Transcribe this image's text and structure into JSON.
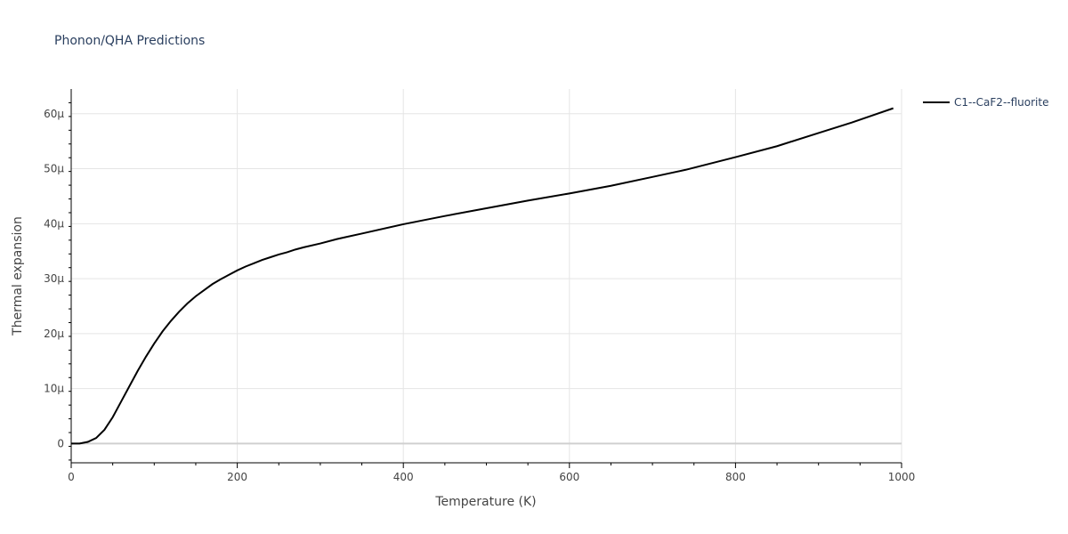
{
  "chart_data": {
    "type": "line",
    "title": "Phonon/QHA Predictions",
    "xlabel": "Temperature (K)",
    "ylabel": "Thermal expansion",
    "xlim": [
      0,
      1000
    ],
    "ylim": [
      -3.5e-06,
      6.45e-05
    ],
    "x_ticks": [
      0,
      200,
      400,
      600,
      800,
      1000
    ],
    "x_tick_labels": [
      "0",
      "200",
      "400",
      "600",
      "800",
      "1000"
    ],
    "y_ticks": [
      0,
      1e-05,
      2e-05,
      3e-05,
      4e-05,
      5e-05,
      6e-05
    ],
    "y_tick_labels": [
      "0",
      "10µ",
      "20µ",
      "30µ",
      "40µ",
      "50µ",
      "60µ"
    ],
    "grid": true,
    "legend_position": "top-right",
    "series": [
      {
        "name": "C1--CaF2--fluorite",
        "color": "#000000",
        "x": [
          0,
          10,
          20,
          30,
          40,
          50,
          60,
          70,
          80,
          90,
          100,
          110,
          120,
          130,
          140,
          150,
          160,
          170,
          180,
          190,
          200,
          210,
          220,
          230,
          240,
          250,
          260,
          270,
          280,
          300,
          320,
          350,
          400,
          450,
          500,
          550,
          600,
          650,
          700,
          740,
          800,
          850,
          900,
          940,
          990
        ],
        "y": [
          0,
          0,
          3e-07,
          1e-06,
          2.5e-06,
          4.8e-06,
          7.6e-06,
          1.04e-05,
          1.32e-05,
          1.58e-05,
          1.82e-05,
          2.04e-05,
          2.23e-05,
          2.4e-05,
          2.55e-05,
          2.68e-05,
          2.79e-05,
          2.9e-05,
          2.99e-05,
          3.07e-05,
          3.15e-05,
          3.22e-05,
          3.28e-05,
          3.34e-05,
          3.39e-05,
          3.44e-05,
          3.48e-05,
          3.53e-05,
          3.57e-05,
          3.64e-05,
          3.72e-05,
          3.82e-05,
          3.99e-05,
          4.14e-05,
          4.28e-05,
          4.42e-05,
          4.55e-05,
          4.69e-05,
          4.85e-05,
          4.98e-05,
          5.21e-05,
          5.41e-05,
          5.65e-05,
          5.84e-05,
          6.1e-05
        ]
      }
    ]
  }
}
